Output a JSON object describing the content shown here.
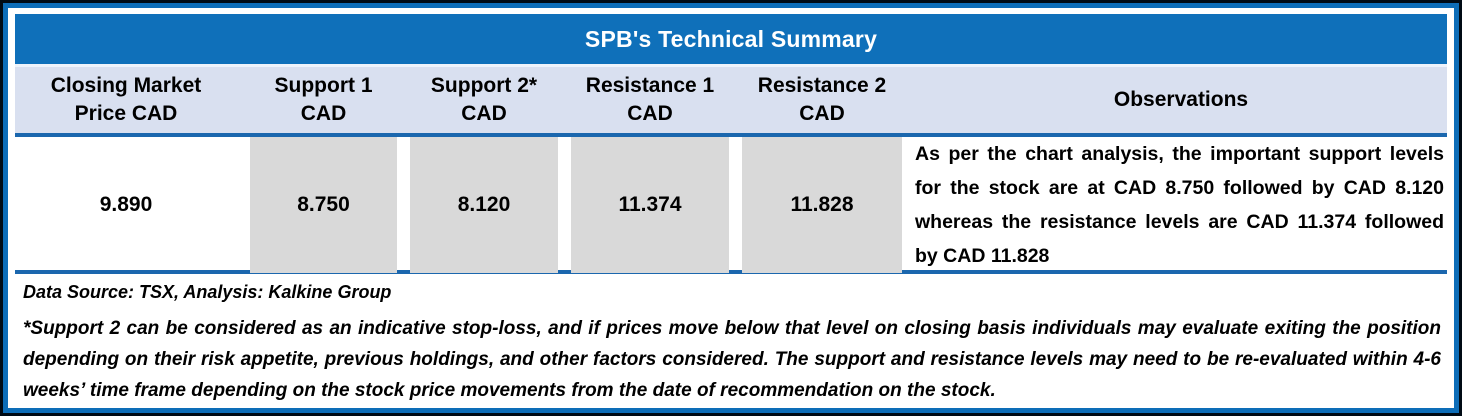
{
  "table": {
    "title": "SPB's Technical Summary",
    "columns": [
      {
        "line1": "Closing Market",
        "line2": "Price CAD"
      },
      {
        "line1": "Support 1",
        "line2": "CAD"
      },
      {
        "line1": "Support 2*",
        "line2": "CAD"
      },
      {
        "line1": "Resistance 1",
        "line2": "CAD"
      },
      {
        "line1": "Resistance 2",
        "line2": "CAD"
      },
      {
        "line1": "Observations",
        "line2": ""
      }
    ],
    "row": {
      "closing_market_price_cad": "9.890",
      "support_1_cad": "8.750",
      "support_2_cad": "8.120",
      "resistance_1_cad": "11.374",
      "resistance_2_cad": "11.828",
      "observations": "As per the chart analysis, the important support levels for the stock are at CAD 8.750 followed by CAD 8.120 whereas the resistance levels are CAD 11.374 followed by CAD 11.828"
    }
  },
  "source_note": "Data Source: TSX, Analysis: Kalkine Group",
  "footnote": "*Support 2 can be considered as an indicative stop-loss, and if prices move below that level on closing basis individuals may evaluate exiting the position depending on their risk appetite, previous holdings, and other factors considered. The support and resistance levels may need to be re-evaluated within 4-6 weeks’ time frame depending on the stock price movements from the date of recommendation on the stock.",
  "colors": {
    "title_bar_blue": "#0f70ba",
    "frame_blue": "#0d6db8",
    "rule_blue": "#1b67ae",
    "header_lavender": "#d9e0f0",
    "cell_gray": "#d9d9d9",
    "text_black": "#000000",
    "title_text_white": "#ffffff"
  }
}
